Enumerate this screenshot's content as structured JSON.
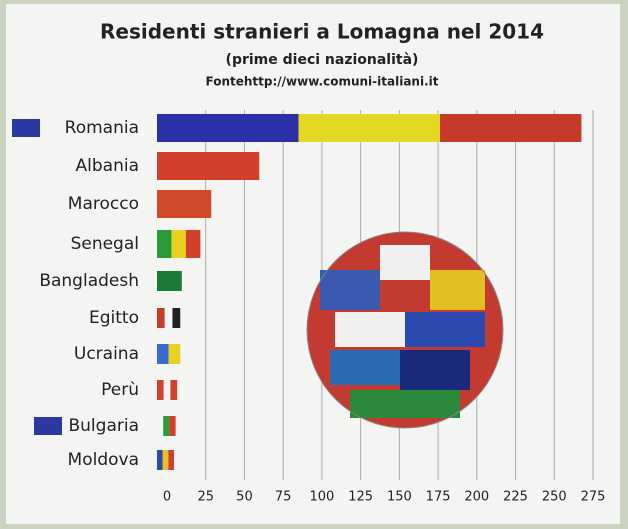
{
  "chart_data": {
    "type": "bar",
    "orientation": "horizontal",
    "title": "Residenti stranieri a Lomagna nel 2014",
    "subtitle": "(prime dieci nazionalità)",
    "source": "Fontehttp://www.comuni-italiani.it",
    "categories": [
      "Romania",
      "Albania",
      "Marocco",
      "Senegal",
      "Bangladesh",
      "Egitto",
      "Ucraina",
      "Perù",
      "Bulgaria",
      "Moldova"
    ],
    "values": [
      274,
      66,
      35,
      28,
      16,
      15,
      15,
      13,
      12,
      11
    ],
    "colors": [
      [
        "#2b2fa8",
        "#e3d822",
        "#c63a2a"
      ],
      [
        "#d0402a"
      ],
      [
        "#d04a2a"
      ],
      [
        "#2a9a3a",
        "#e8d020",
        "#d0402a"
      ],
      [
        "#1a7a3a"
      ],
      [
        "#c83a2a",
        "#f4f4f4",
        "#222222"
      ],
      [
        "#3a6ad0",
        "#e8d020"
      ],
      [
        "#d0402a",
        "#f4f4f4",
        "#d0402a"
      ],
      [
        "#f4f4f4",
        "#2a9a3a",
        "#d0402a"
      ],
      [
        "#2a4ab0",
        "#e8c020",
        "#d0402a"
      ]
    ],
    "xlim": [
      0,
      275
    ],
    "xticks": [
      0,
      25,
      50,
      75,
      100,
      125,
      150,
      175,
      200,
      225,
      250,
      275
    ],
    "grid": true
  }
}
